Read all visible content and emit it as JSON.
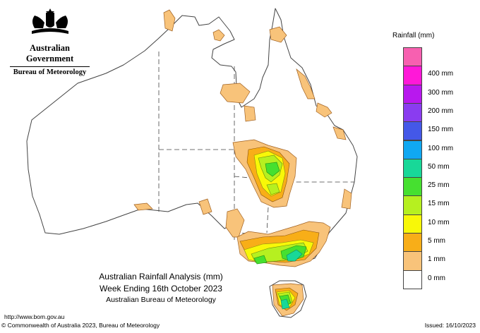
{
  "header": {
    "government": "Australian Government",
    "bureau": "Bureau of Meteorology"
  },
  "title": {
    "line1": "Australian Rainfall Analysis (mm)",
    "line2": "Week Ending 16th October 2023",
    "line3": "Australian Bureau of Meteorology"
  },
  "footer": {
    "url": "http://www.bom.gov.au",
    "copyright": "© Commonwealth of Australia 2023, Bureau of Meteorology",
    "issued": "Issued: 16/10/2023"
  },
  "legend": {
    "title": "Rainfall (mm)",
    "items": [
      {
        "label": "",
        "color": "#f760b0"
      },
      {
        "label": "400 mm",
        "color": "#ff18d8"
      },
      {
        "label": "300 mm",
        "color": "#b818ee"
      },
      {
        "label": "200 mm",
        "color": "#8a3cf0"
      },
      {
        "label": "150 mm",
        "color": "#4458e8"
      },
      {
        "label": "100 mm",
        "color": "#10a8f2"
      },
      {
        "label": "50 mm",
        "color": "#18d898"
      },
      {
        "label": "25 mm",
        "color": "#46e030"
      },
      {
        "label": "15 mm",
        "color": "#b6f020"
      },
      {
        "label": "10 mm",
        "color": "#f8f808"
      },
      {
        "label": "5 mm",
        "color": "#f8ae18"
      },
      {
        "label": "1 mm",
        "color": "#f8c37a"
      },
      {
        "label": "0 mm",
        "color": "#ffffff"
      }
    ]
  }
}
